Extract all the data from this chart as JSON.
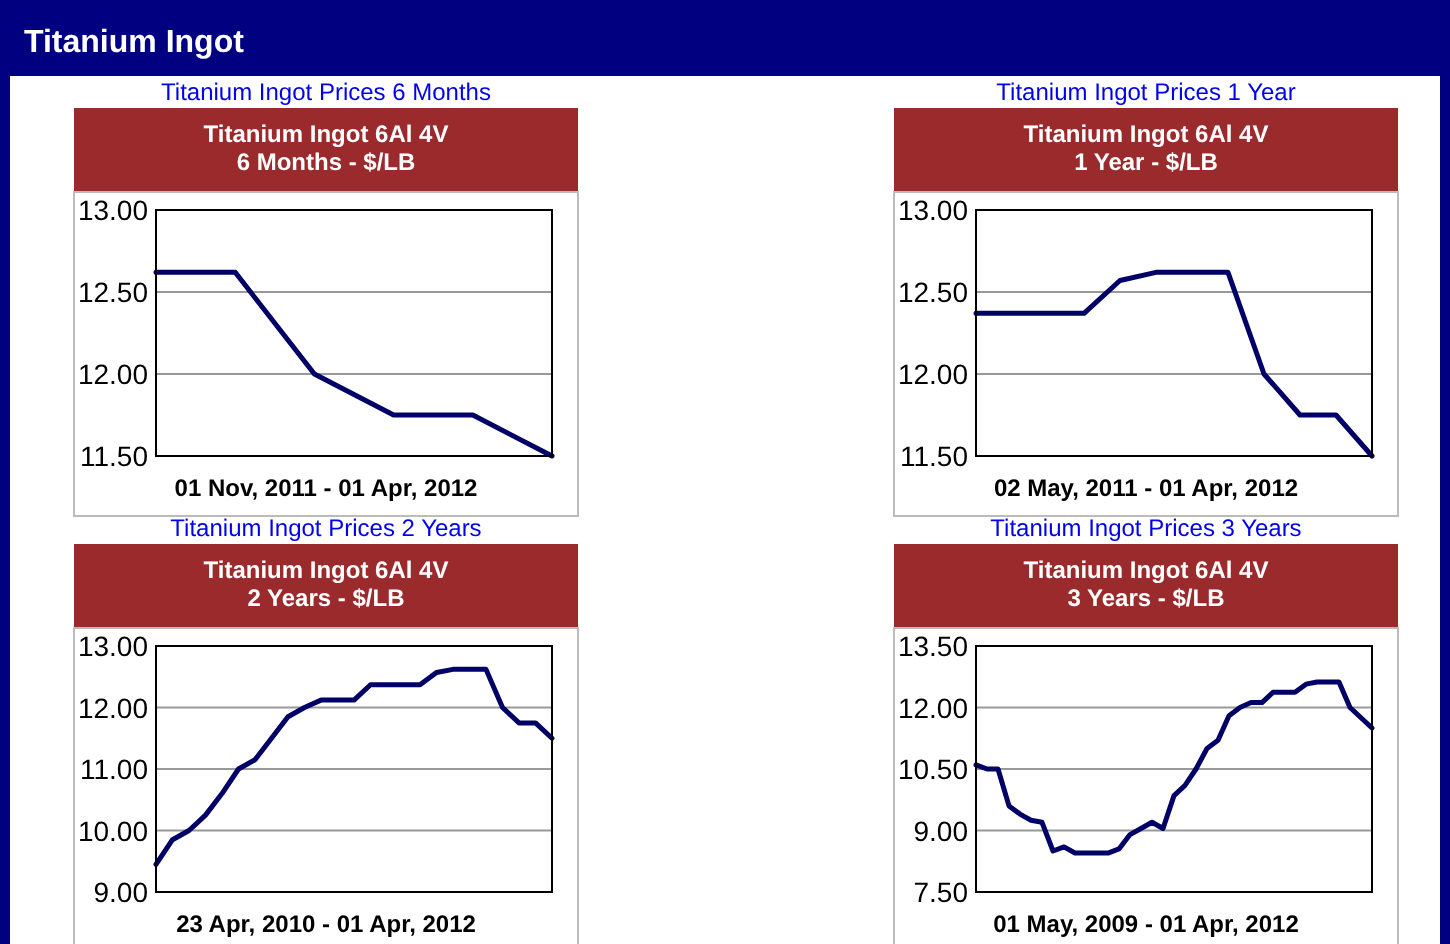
{
  "chart_data": [
    {
      "type": "other",
      "title": "Titanium Ingot"
    },
    {
      "type": "line",
      "title": "Titanium Ingot Prices 6 Months",
      "subtitle": "Titanium Ingot 6Al 4V\n6 Months - $/LB",
      "xlabel": "01 Nov, 2011 - 01 Apr, 2012",
      "categories": [
        null,
        null,
        null,
        null,
        null,
        null
      ],
      "series": [
        {
          "color": "#000066",
          "values": [
            12.62,
            12.62,
            12.0,
            11.75,
            11.75,
            11.5
          ]
        }
      ],
      "ylim": [
        11.5,
        13.0
      ],
      "yticks": [
        {
          "value": 11.5,
          "label": "11.50"
        },
        {
          "value": 12,
          "label": "12.00"
        },
        {
          "value": 12.5,
          "label": "12.50"
        },
        {
          "value": 13,
          "label": "13.00"
        }
      ],
      "grid": "y",
      "tick_labels": "y"
    },
    {
      "type": "line",
      "title": "Titanium Ingot Prices 1 Year",
      "subtitle": "Titanium Ingot 6Al 4V\n1 Year - $/LB",
      "xlabel": "02 May, 2011 - 01 Apr, 2012",
      "categories": [
        null,
        null,
        null,
        null,
        null,
        null,
        null,
        null,
        null,
        null,
        null,
        null
      ],
      "series": [
        {
          "color": "#000066",
          "values": [
            12.37,
            12.37,
            12.37,
            12.37,
            12.57,
            12.62,
            12.62,
            12.62,
            12.0,
            11.75,
            11.75,
            11.5
          ]
        }
      ],
      "ylim": [
        11.5,
        13.0
      ],
      "yticks": [
        {
          "value": 11.5,
          "label": "11.50"
        },
        {
          "value": 12,
          "label": "12.00"
        },
        {
          "value": 12.5,
          "label": "12.50"
        },
        {
          "value": 13,
          "label": "13.00"
        }
      ],
      "grid": "y",
      "tick_labels": "y"
    },
    {
      "type": "line",
      "title": "Titanium Ingot Prices 2 Years",
      "subtitle": "Titanium Ingot 6Al 4V\n2 Years - $/LB",
      "xlabel": "23 Apr, 2010 - 01 Apr, 2012",
      "categories": [
        null,
        null,
        null,
        null,
        null,
        null,
        null,
        null,
        null,
        null,
        null,
        null,
        null,
        null,
        null,
        null,
        null,
        null,
        null,
        null,
        null,
        null,
        null,
        null,
        null
      ],
      "series": [
        {
          "color": "#000066",
          "values": [
            9.45,
            9.85,
            10.0,
            10.25,
            10.6,
            11.0,
            11.15,
            11.5,
            11.85,
            12.0,
            12.12,
            12.12,
            12.12,
            12.37,
            12.37,
            12.37,
            12.37,
            12.57,
            12.62,
            12.62,
            12.62,
            12.0,
            11.75,
            11.75,
            11.5
          ]
        }
      ],
      "ylim": [
        9.0,
        13.0
      ],
      "yticks": [
        {
          "value": 9,
          "label": "9.00"
        },
        {
          "value": 10,
          "label": "10.00"
        },
        {
          "value": 11,
          "label": "11.00"
        },
        {
          "value": 12,
          "label": "12.00"
        },
        {
          "value": 13,
          "label": "13.00"
        }
      ],
      "grid": "y",
      "tick_labels": "y"
    },
    {
      "type": "line",
      "title": "Titanium Ingot Prices 3 Years",
      "subtitle": "Titanium Ingot 6Al 4V\n3 Years - $/LB",
      "xlabel": "01 May, 2009 - 01 Apr, 2012",
      "categories": [
        null,
        null,
        null,
        null,
        null,
        null,
        null,
        null,
        null,
        null,
        null,
        null,
        null,
        null,
        null,
        null,
        null,
        null,
        null,
        null,
        null,
        null,
        null,
        null,
        null,
        null,
        null,
        null,
        null,
        null,
        null,
        null,
        null,
        null,
        null,
        null,
        null
      ],
      "series": [
        {
          "color": "#000066",
          "values": [
            10.6,
            10.5,
            10.5,
            9.6,
            9.4,
            9.25,
            9.2,
            8.5,
            8.6,
            8.45,
            8.45,
            8.45,
            8.45,
            8.55,
            8.9,
            9.05,
            9.2,
            9.05,
            9.85,
            10.1,
            10.5,
            11.0,
            11.2,
            11.8,
            12.0,
            12.12,
            12.12,
            12.37,
            12.37,
            12.37,
            12.57,
            12.62,
            12.62,
            12.62,
            12.0,
            11.75,
            11.5
          ]
        }
      ],
      "ylim": [
        7.5,
        13.5
      ],
      "yticks": [
        {
          "value": 7.5,
          "label": "7.50"
        },
        {
          "value": 9,
          "label": "9.00"
        },
        {
          "value": 10.5,
          "label": "10.50"
        },
        {
          "value": 12,
          "label": "12.00"
        },
        {
          "value": 13.5,
          "label": "13.50"
        }
      ],
      "grid": "y",
      "tick_labels": "y"
    }
  ]
}
